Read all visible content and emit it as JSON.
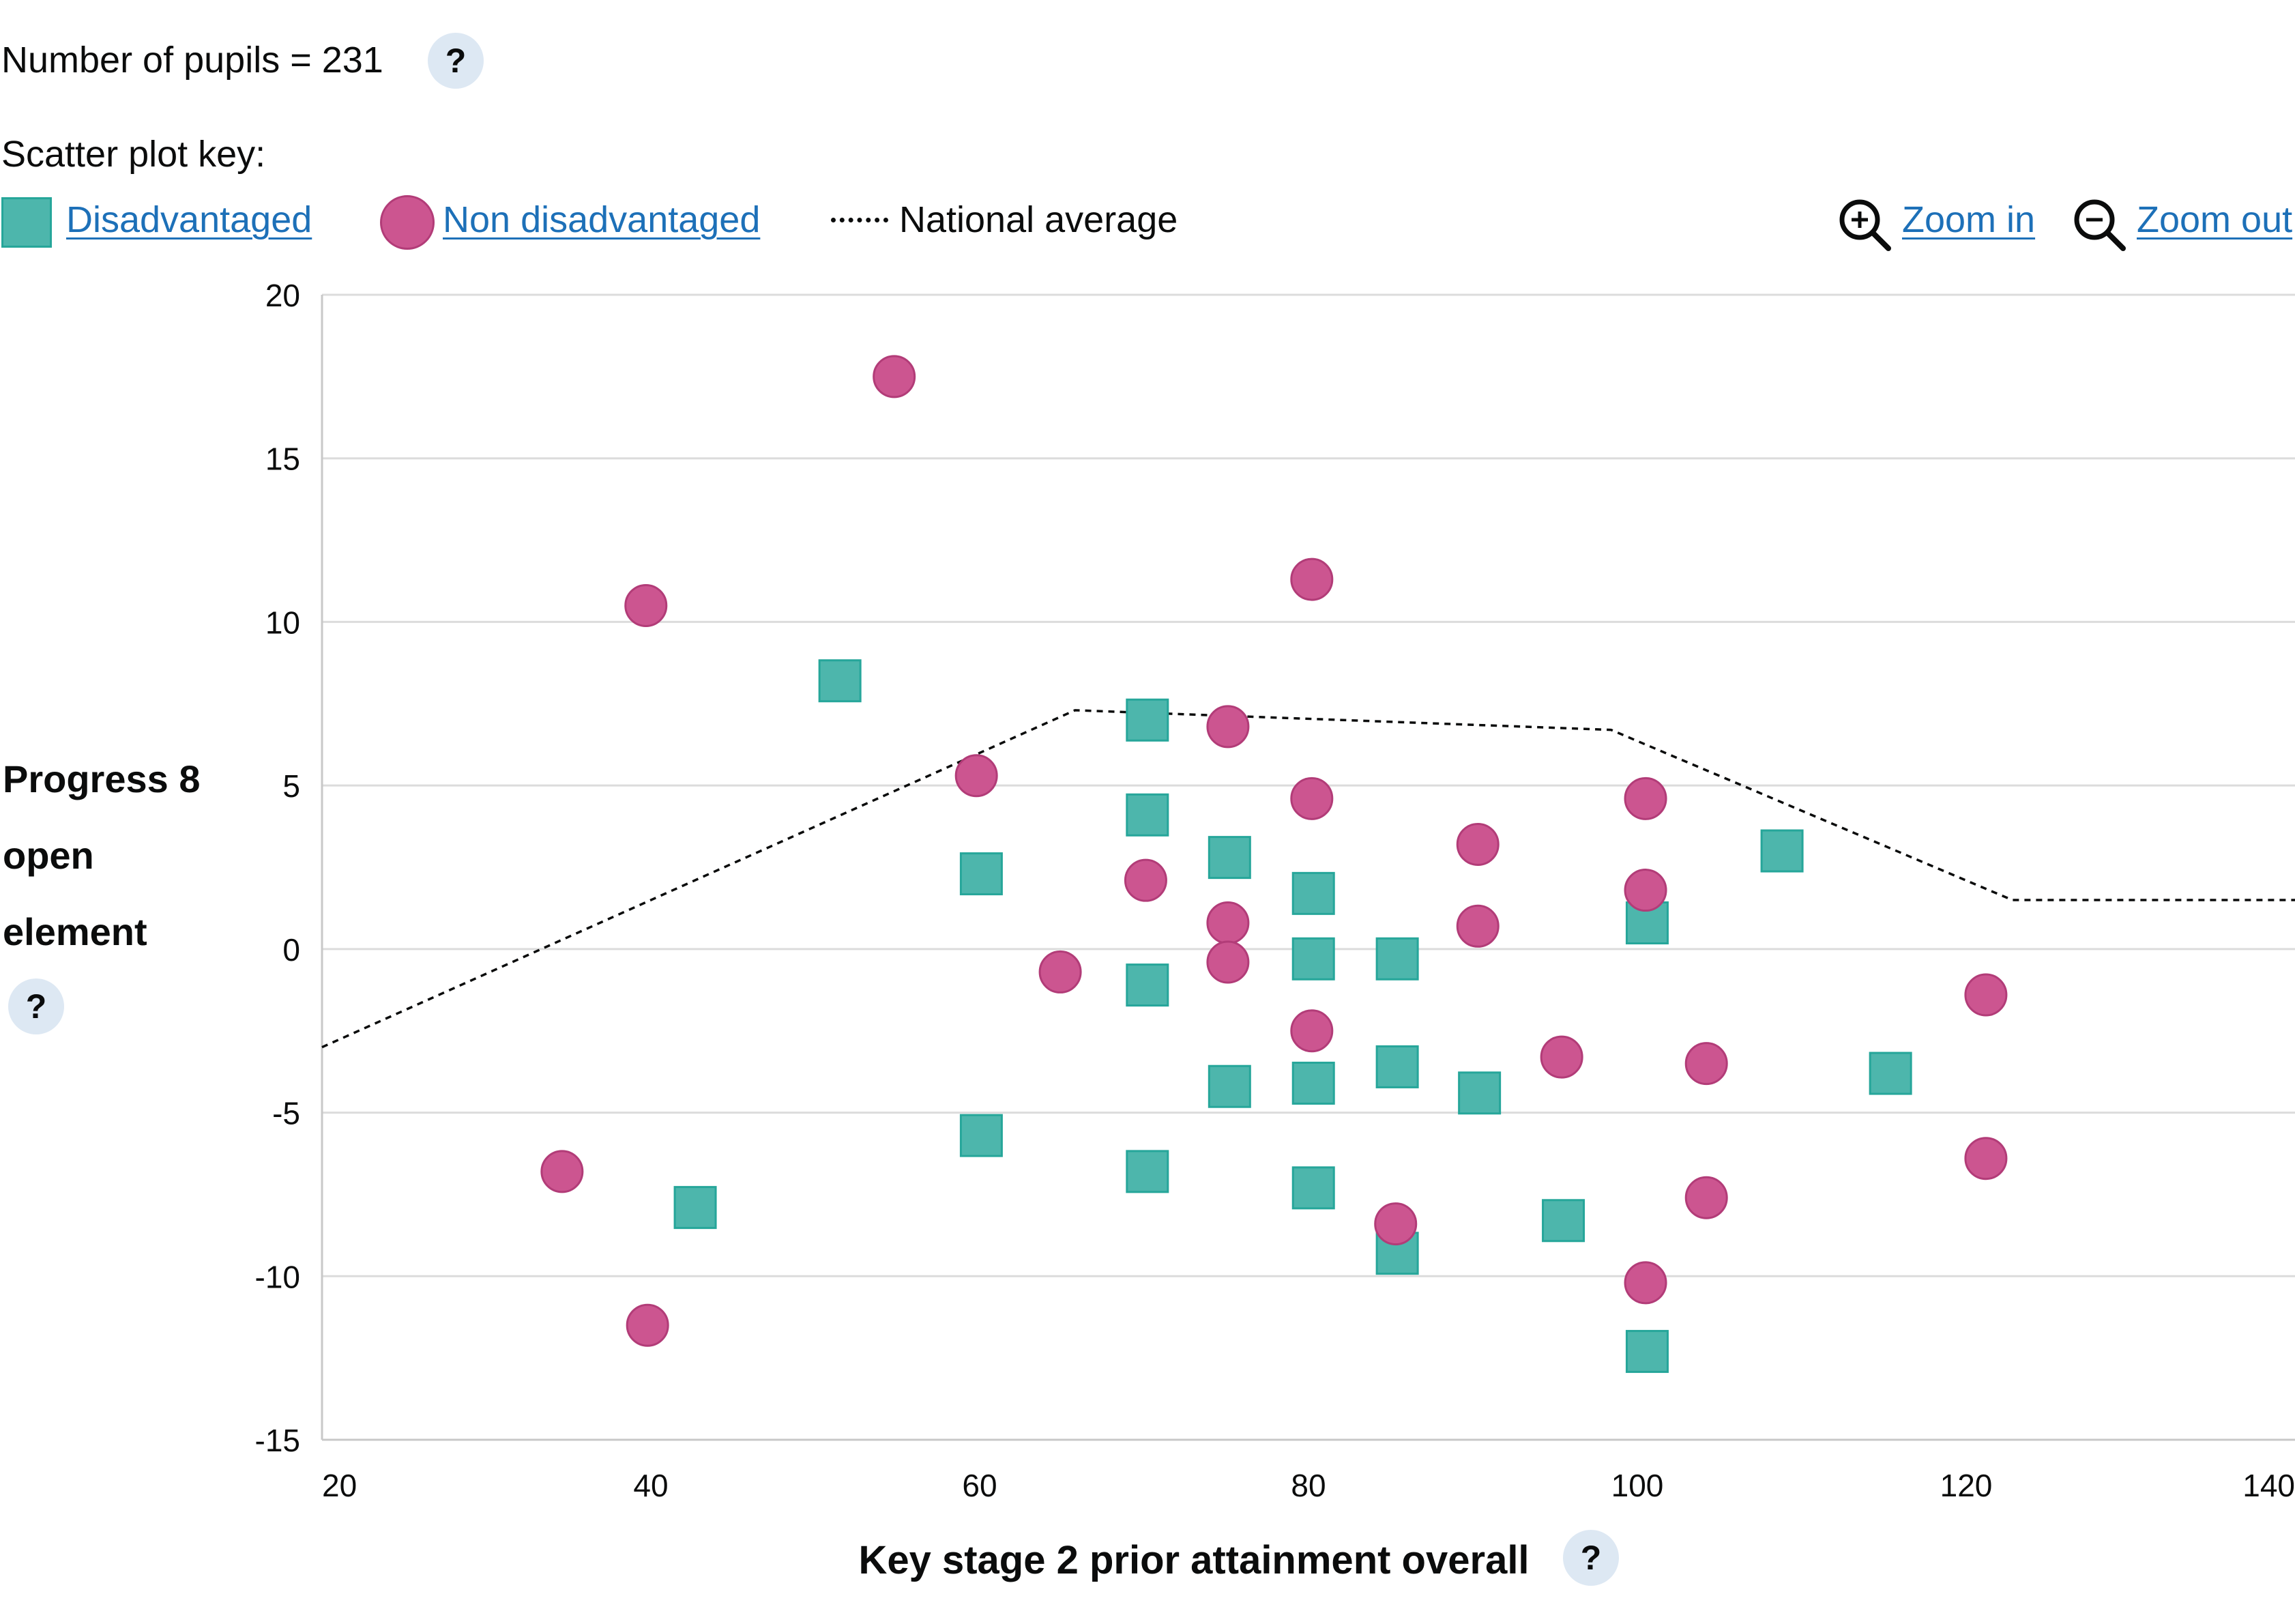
{
  "header": {
    "pupils_text": "Number of pupils = 231",
    "help_glyph": "?"
  },
  "legend": {
    "title": "Scatter plot key:",
    "disadvantaged_label": "Disadvantaged",
    "non_disadvantaged_label": "Non disadvantaged",
    "national_average_label": "National average"
  },
  "zoom": {
    "zoom_in_label": "Zoom in",
    "zoom_out_label": "Zoom out"
  },
  "colors": {
    "disadvantaged": "#4db6ac",
    "non_disadvantaged": "#cc5590",
    "link": "#1d70b8",
    "help_bg": "#dde8f3"
  },
  "icons": {
    "zoom_in": "zoom-in-icon",
    "zoom_out": "zoom-out-icon",
    "help": "help-icon"
  },
  "chart_data": {
    "type": "scatter",
    "xlabel": "Key stage 2 prior attainment overall",
    "ylabel": "Progress 8 open element",
    "xlim": [
      20,
      140
    ],
    "ylim": [
      -15,
      20
    ],
    "xticks": [
      20,
      40,
      60,
      80,
      100,
      120,
      140
    ],
    "yticks": [
      -15,
      -10,
      -5,
      0,
      5,
      10,
      15,
      20
    ],
    "grid": "horizontal",
    "series": [
      {
        "name": "Disadvantaged",
        "marker": "square",
        "color": "#4db6ac",
        "points": [
          [
            42.7,
            -7.9
          ],
          [
            51.5,
            8.2
          ],
          [
            60.1,
            2.3
          ],
          [
            60.1,
            -5.7
          ],
          [
            70.2,
            7.0
          ],
          [
            70.2,
            4.1
          ],
          [
            70.2,
            -1.1
          ],
          [
            70.2,
            -6.8
          ],
          [
            75.2,
            2.8
          ],
          [
            75.2,
            -4.2
          ],
          [
            80.3,
            1.7
          ],
          [
            80.3,
            -0.3
          ],
          [
            80.3,
            -4.1
          ],
          [
            80.3,
            -7.3
          ],
          [
            85.4,
            -0.3
          ],
          [
            85.4,
            -3.6
          ],
          [
            85.4,
            -9.3
          ],
          [
            90.4,
            -4.4
          ],
          [
            95.5,
            -8.3
          ],
          [
            100.6,
            0.8
          ],
          [
            100.6,
            -12.3
          ],
          [
            108.8,
            3.0
          ],
          [
            115.4,
            -3.8
          ]
        ]
      },
      {
        "name": "Non disadvantaged",
        "marker": "circle",
        "color": "#cc5590",
        "points": [
          [
            34.6,
            -6.8
          ],
          [
            39.7,
            10.5
          ],
          [
            39.8,
            -11.5
          ],
          [
            54.8,
            17.5
          ],
          [
            59.8,
            5.3
          ],
          [
            64.9,
            -0.7
          ],
          [
            70.1,
            2.1
          ],
          [
            75.1,
            6.8
          ],
          [
            75.1,
            0.8
          ],
          [
            75.1,
            -0.4
          ],
          [
            80.2,
            11.3
          ],
          [
            80.2,
            4.6
          ],
          [
            80.2,
            -2.5
          ],
          [
            85.3,
            -8.4
          ],
          [
            90.3,
            3.2
          ],
          [
            90.3,
            0.7
          ],
          [
            95.4,
            -3.3
          ],
          [
            100.5,
            4.6
          ],
          [
            100.5,
            1.8
          ],
          [
            100.5,
            -10.2
          ],
          [
            104.2,
            -3.5
          ],
          [
            104.2,
            -7.6
          ],
          [
            121.2,
            -1.4
          ],
          [
            121.2,
            -6.4
          ]
        ]
      }
    ],
    "reference_line": {
      "name": "National average",
      "style": "dotted",
      "points": [
        [
          20,
          -3.0
        ],
        [
          65.8,
          7.3
        ],
        [
          98.4,
          6.7
        ],
        [
          122.8,
          1.5
        ],
        [
          140,
          1.5
        ]
      ]
    }
  }
}
